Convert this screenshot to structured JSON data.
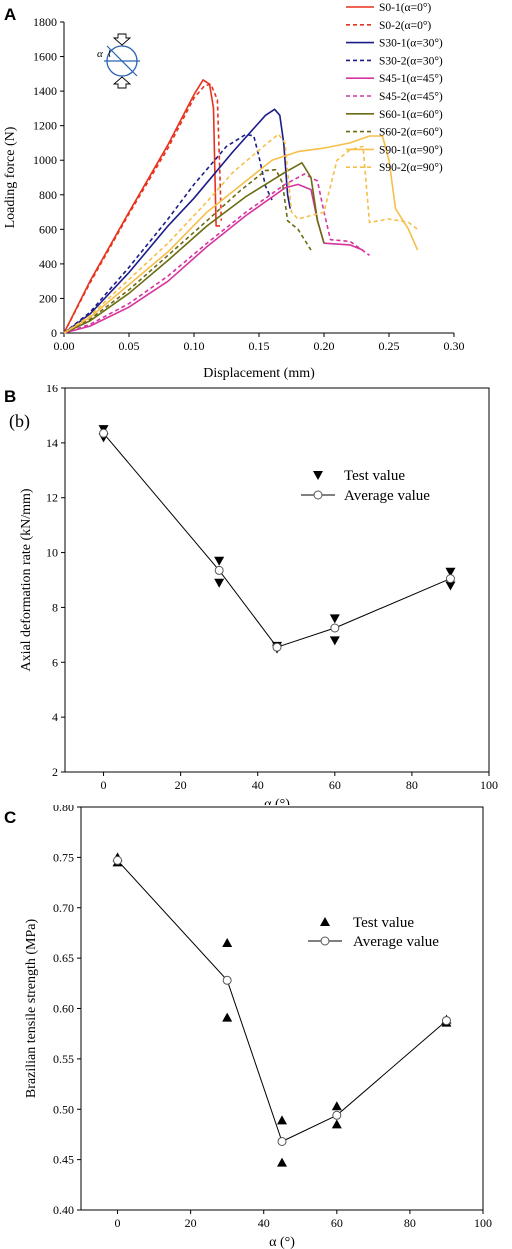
{
  "panels": {
    "a": {
      "letter": "A"
    },
    "b": {
      "letter": "B",
      "sublabel": "(b)"
    },
    "c": {
      "letter": "C"
    }
  },
  "chart_data": [
    {
      "type": "line",
      "panel": "A",
      "xlabel": "Displacement (mm)",
      "ylabel": "Loading force (N)",
      "xlim": [
        0.0,
        0.3
      ],
      "ylim": [
        0,
        1800
      ],
      "xticks": [
        "0.00",
        "0.05",
        "0.10",
        "0.15",
        "0.20",
        "0.25",
        "0.30"
      ],
      "yticks": [
        "0",
        "200",
        "400",
        "600",
        "800",
        "1000",
        "1200",
        "1400",
        "1600",
        "1800"
      ],
      "grid": false,
      "legend_position": "right",
      "series": [
        {
          "name": "S0-1(α=0°)",
          "color": "#e8321e",
          "dash": "solid",
          "points": [
            [
              0,
              0
            ],
            [
              0.02,
              300
            ],
            [
              0.05,
              700
            ],
            [
              0.08,
              1090
            ],
            [
              0.1,
              1380
            ],
            [
              0.107,
              1465
            ],
            [
              0.112,
              1440
            ],
            [
              0.115,
              1300
            ],
            [
              0.116,
              950
            ],
            [
              0.117,
              620
            ],
            [
              0.12,
              620
            ]
          ]
        },
        {
          "name": "S0-2(α=0°)",
          "color": "#e8321e",
          "dash": "dashed",
          "points": [
            [
              0,
              0
            ],
            [
              0.02,
              290
            ],
            [
              0.05,
              690
            ],
            [
              0.08,
              1070
            ],
            [
              0.1,
              1360
            ],
            [
              0.108,
              1430
            ],
            [
              0.113,
              1440
            ],
            [
              0.118,
              1350
            ],
            [
              0.12,
              900
            ],
            [
              0.121,
              650
            ]
          ]
        },
        {
          "name": "S30-1(α=30°)",
          "color": "#1c1c8a",
          "dash": "solid",
          "points": [
            [
              0,
              0
            ],
            [
              0.02,
              110
            ],
            [
              0.05,
              350
            ],
            [
              0.08,
              620
            ],
            [
              0.1,
              780
            ],
            [
              0.13,
              1050
            ],
            [
              0.155,
              1260
            ],
            [
              0.162,
              1295
            ],
            [
              0.166,
              1260
            ],
            [
              0.169,
              1100
            ],
            [
              0.172,
              800
            ],
            [
              0.174,
              720
            ]
          ]
        },
        {
          "name": "S30-2(α=30°)",
          "color": "#1c1c8a",
          "dash": "dashed",
          "points": [
            [
              0,
              0
            ],
            [
              0.02,
              120
            ],
            [
              0.05,
              380
            ],
            [
              0.08,
              660
            ],
            [
              0.1,
              860
            ],
            [
              0.125,
              1080
            ],
            [
              0.14,
              1150
            ],
            [
              0.146,
              1140
            ],
            [
              0.15,
              1020
            ],
            [
              0.155,
              850
            ],
            [
              0.16,
              770
            ]
          ]
        },
        {
          "name": "S45-1(α=45°)",
          "color": "#d6359e",
          "dash": "solid",
          "points": [
            [
              0,
              0
            ],
            [
              0.02,
              40
            ],
            [
              0.05,
              150
            ],
            [
              0.08,
              300
            ],
            [
              0.11,
              500
            ],
            [
              0.14,
              680
            ],
            [
              0.17,
              840
            ],
            [
              0.18,
              860
            ],
            [
              0.19,
              830
            ],
            [
              0.195,
              650
            ],
            [
              0.2,
              520
            ],
            [
              0.22,
              510
            ],
            [
              0.23,
              480
            ]
          ]
        },
        {
          "name": "S45-2(α=45°)",
          "color": "#d6359e",
          "dash": "dashed",
          "points": [
            [
              0,
              0
            ],
            [
              0.02,
              50
            ],
            [
              0.05,
              170
            ],
            [
              0.08,
              330
            ],
            [
              0.11,
              520
            ],
            [
              0.14,
              700
            ],
            [
              0.17,
              860
            ],
            [
              0.185,
              920
            ],
            [
              0.195,
              880
            ],
            [
              0.2,
              700
            ],
            [
              0.205,
              540
            ],
            [
              0.22,
              530
            ],
            [
              0.235,
              450
            ]
          ]
        },
        {
          "name": "S60-1(α=60°)",
          "color": "#6b6b12",
          "dash": "solid",
          "points": [
            [
              0,
              0
            ],
            [
              0.02,
              70
            ],
            [
              0.05,
              230
            ],
            [
              0.08,
              420
            ],
            [
              0.11,
              620
            ],
            [
              0.14,
              790
            ],
            [
              0.17,
              930
            ],
            [
              0.183,
              985
            ],
            [
              0.19,
              900
            ],
            [
              0.195,
              650
            ],
            [
              0.2,
              520
            ]
          ]
        },
        {
          "name": "S60-2(α=60°)",
          "color": "#6b6b12",
          "dash": "dashed",
          "points": [
            [
              0,
              0
            ],
            [
              0.02,
              80
            ],
            [
              0.05,
              250
            ],
            [
              0.08,
              450
            ],
            [
              0.11,
              650
            ],
            [
              0.135,
              820
            ],
            [
              0.155,
              940
            ],
            [
              0.163,
              945
            ],
            [
              0.168,
              870
            ],
            [
              0.172,
              650
            ],
            [
              0.18,
              600
            ],
            [
              0.19,
              480
            ]
          ]
        },
        {
          "name": "S90-1(α=90°)",
          "color": "#f5bf4a",
          "dash": "solid",
          "points": [
            [
              0,
              0
            ],
            [
              0.02,
              90
            ],
            [
              0.05,
              280
            ],
            [
              0.08,
              470
            ],
            [
              0.11,
              700
            ],
            [
              0.14,
              880
            ],
            [
              0.16,
              1000
            ],
            [
              0.18,
              1050
            ],
            [
              0.2,
              1070
            ],
            [
              0.22,
              1100
            ],
            [
              0.235,
              1140
            ],
            [
              0.245,
              1140
            ],
            [
              0.25,
              1000
            ],
            [
              0.255,
              720
            ],
            [
              0.265,
              600
            ],
            [
              0.272,
              480
            ]
          ]
        },
        {
          "name": "S90-2(α=90°)",
          "color": "#f5bf4a",
          "dash": "dashed",
          "points": [
            [
              0,
              0
            ],
            [
              0.02,
              100
            ],
            [
              0.05,
              310
            ],
            [
              0.08,
              520
            ],
            [
              0.11,
              760
            ],
            [
              0.13,
              930
            ],
            [
              0.155,
              1090
            ],
            [
              0.165,
              1150
            ],
            [
              0.17,
              1100
            ],
            [
              0.175,
              700
            ],
            [
              0.18,
              660
            ],
            [
              0.2,
              700
            ],
            [
              0.21,
              1000
            ],
            [
              0.22,
              1060
            ],
            [
              0.23,
              1080
            ],
            [
              0.235,
              640
            ],
            [
              0.25,
              660
            ],
            [
              0.265,
              640
            ],
            [
              0.272,
              600
            ]
          ]
        }
      ]
    },
    {
      "type": "scatter",
      "panel": "B",
      "xlabel": "α (°)",
      "ylabel": "Axial deformation rate (kN/mm)",
      "xlim": [
        -10,
        100
      ],
      "ylim": [
        2,
        16
      ],
      "xticks": [
        "0",
        "20",
        "40",
        "60",
        "80",
        "100"
      ],
      "yticks": [
        "2",
        "4",
        "6",
        "8",
        "10",
        "12",
        "14",
        "16"
      ],
      "grid": false,
      "legend_position": "top-right",
      "legend": {
        "test": "Test value",
        "average": "Average value"
      },
      "test_values": [
        [
          0,
          14.5
        ],
        [
          0,
          14.2
        ],
        [
          30,
          9.7
        ],
        [
          30,
          8.9
        ],
        [
          45,
          6.6
        ],
        [
          45,
          6.5
        ],
        [
          60,
          7.6
        ],
        [
          60,
          6.8
        ],
        [
          90,
          9.3
        ],
        [
          90,
          8.8
        ]
      ],
      "average_values": {
        "x": [
          0,
          30,
          45,
          60,
          90
        ],
        "y": [
          14.35,
          9.35,
          6.55,
          7.25,
          9.05
        ]
      }
    },
    {
      "type": "scatter",
      "panel": "C",
      "xlabel": "α (°)",
      "ylabel": "Brazilian tensile strength (MPa)",
      "xlim": [
        -10,
        100
      ],
      "ylim": [
        0.4,
        0.8
      ],
      "xticks": [
        "0",
        "20",
        "40",
        "60",
        "80",
        "100"
      ],
      "yticks": [
        "0.40",
        "0.45",
        "0.50",
        "0.55",
        "0.60",
        "0.65",
        "0.70",
        "0.75",
        "0.80"
      ],
      "grid": false,
      "legend_position": "top-right",
      "legend": {
        "test": "Test value",
        "average": "Average value"
      },
      "test_values": [
        [
          0,
          0.75
        ],
        [
          0,
          0.745
        ],
        [
          30,
          0.665
        ],
        [
          30,
          0.591
        ],
        [
          45,
          0.489
        ],
        [
          45,
          0.447
        ],
        [
          60,
          0.503
        ],
        [
          60,
          0.485
        ],
        [
          90,
          0.589
        ],
        [
          90,
          0.586
        ]
      ],
      "average_values": {
        "x": [
          0,
          30,
          45,
          60,
          90
        ],
        "y": [
          0.747,
          0.628,
          0.468,
          0.494,
          0.588
        ]
      }
    }
  ]
}
